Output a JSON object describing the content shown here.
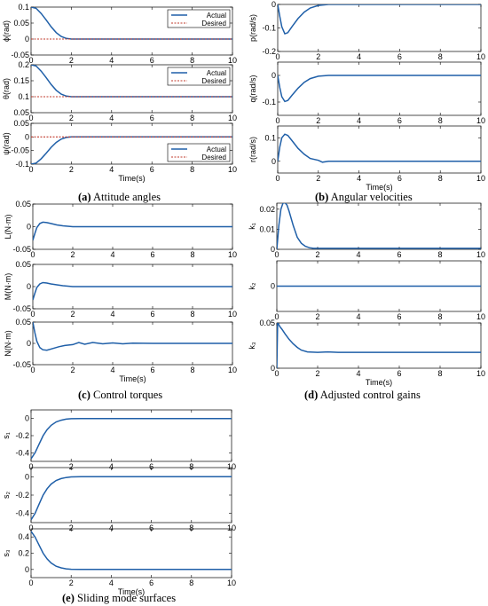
{
  "colors": {
    "actual": "#1f5fa8",
    "desired": "#c0392b",
    "axis": "#000000"
  },
  "legend": {
    "actual": "Actual",
    "desired": "Desired"
  },
  "captions": {
    "a": {
      "letter": "(a)",
      "text": " Attitude angles"
    },
    "b": {
      "letter": "(b)",
      "text": " Angular velocities"
    },
    "c": {
      "letter": "(c)",
      "text": " Control torques"
    },
    "d": {
      "letter": "(d)",
      "text": " Adjusted control gains"
    },
    "e": {
      "letter": "(e)",
      "text": " Sliding mode surfaces"
    }
  },
  "chart_data": [
    {
      "id": "a1",
      "type": "line",
      "ylabel": "ϕ(rad)",
      "xlim": [
        0,
        10
      ],
      "ylim": [
        -0.05,
        0.1
      ],
      "xticks": [
        0,
        2,
        4,
        6,
        8,
        10
      ],
      "yticks": [
        {
          "v": -0.05,
          "t": "-0.05"
        },
        {
          "v": 0,
          "t": "0"
        },
        {
          "v": 0.05,
          "t": "0.05"
        },
        {
          "v": 0.1,
          "t": "0.1"
        }
      ],
      "legend": "top-right",
      "xlabel": "",
      "showXTickLabels": true,
      "series": [
        {
          "name": "Actual",
          "kind": "actual",
          "x": [
            0,
            0.25,
            0.5,
            0.75,
            1,
            1.25,
            1.5,
            1.75,
            2,
            2.5,
            3,
            10
          ],
          "y": [
            0.1,
            0.096,
            0.08,
            0.06,
            0.038,
            0.02,
            0.008,
            0.002,
            0,
            0,
            0,
            0
          ]
        },
        {
          "name": "Desired",
          "kind": "desired",
          "x": [
            0,
            10
          ],
          "y": [
            0,
            0
          ]
        }
      ]
    },
    {
      "id": "a2",
      "type": "line",
      "ylabel": "θ(rad)",
      "xlim": [
        0,
        10
      ],
      "ylim": [
        0.05,
        0.2
      ],
      "xticks": [
        0,
        2,
        4,
        6,
        8,
        10
      ],
      "yticks": [
        {
          "v": 0.05,
          "t": "0.05"
        },
        {
          "v": 0.1,
          "t": "0.1"
        },
        {
          "v": 0.15,
          "t": "0.15"
        },
        {
          "v": 0.2,
          "t": "0.2"
        }
      ],
      "legend": "top-right",
      "xlabel": "",
      "showXTickLabels": true,
      "series": [
        {
          "name": "Actual",
          "kind": "actual",
          "x": [
            0,
            0.25,
            0.5,
            0.75,
            1,
            1.25,
            1.5,
            1.75,
            2,
            2.5,
            10
          ],
          "y": [
            0.2,
            0.196,
            0.18,
            0.16,
            0.138,
            0.12,
            0.108,
            0.102,
            0.1,
            0.1,
            0.1
          ]
        },
        {
          "name": "Desired",
          "kind": "desired",
          "x": [
            0,
            10
          ],
          "y": [
            0.1,
            0.1
          ]
        }
      ]
    },
    {
      "id": "a3",
      "type": "line",
      "ylabel": "ψ(rad)",
      "xlim": [
        0,
        10
      ],
      "ylim": [
        -0.1,
        0.05
      ],
      "xticks": [
        0,
        2,
        4,
        6,
        8,
        10
      ],
      "yticks": [
        {
          "v": -0.1,
          "t": "-0.1"
        },
        {
          "v": -0.05,
          "t": "-0.05"
        },
        {
          "v": 0,
          "t": "0"
        },
        {
          "v": 0.05,
          "t": "0.05"
        }
      ],
      "legend": "bottom-right",
      "xlabel": "Time(s)",
      "showXTickLabels": true,
      "series": [
        {
          "name": "Actual",
          "kind": "actual",
          "x": [
            0,
            0.25,
            0.5,
            0.75,
            1,
            1.25,
            1.5,
            1.75,
            2,
            2.5,
            10
          ],
          "y": [
            -0.1,
            -0.096,
            -0.08,
            -0.06,
            -0.038,
            -0.02,
            -0.008,
            -0.002,
            0,
            0,
            0
          ]
        },
        {
          "name": "Desired",
          "kind": "desired",
          "x": [
            0,
            10
          ],
          "y": [
            0,
            0
          ]
        }
      ]
    },
    {
      "id": "b1",
      "type": "line",
      "ylabel": "p(rad/s)",
      "xlim": [
        0,
        10
      ],
      "ylim": [
        -0.2,
        0
      ],
      "xticks": [
        0,
        2,
        4,
        6,
        8,
        10
      ],
      "yticks": [
        {
          "v": -0.2,
          "t": "-0.2"
        },
        {
          "v": -0.1,
          "t": "-0.1"
        },
        {
          "v": 0,
          "t": "0"
        }
      ],
      "xlabel": "",
      "showXTickLabels": true,
      "series": [
        {
          "name": "",
          "kind": "actual",
          "x": [
            0,
            0.1,
            0.2,
            0.35,
            0.5,
            0.7,
            1,
            1.3,
            1.6,
            2,
            2.5,
            3,
            10
          ],
          "y": [
            0,
            -0.05,
            -0.095,
            -0.125,
            -0.12,
            -0.095,
            -0.06,
            -0.033,
            -0.015,
            -0.004,
            0,
            0,
            0
          ]
        }
      ]
    },
    {
      "id": "b2",
      "type": "line",
      "ylabel": "q(rad/s)",
      "xlim": [
        0,
        10
      ],
      "ylim": [
        -0.15,
        0.05
      ],
      "xticks": [
        0,
        2,
        4,
        6,
        8,
        10
      ],
      "yticks": [
        {
          "v": -0.1,
          "t": "-0.1"
        },
        {
          "v": 0,
          "t": "0"
        }
      ],
      "xlabel": "",
      "showXTickLabels": true,
      "series": [
        {
          "name": "",
          "kind": "actual",
          "x": [
            0,
            0.1,
            0.2,
            0.35,
            0.5,
            0.7,
            1,
            1.3,
            1.6,
            2,
            2.5,
            3,
            10
          ],
          "y": [
            0,
            -0.045,
            -0.08,
            -0.098,
            -0.094,
            -0.075,
            -0.048,
            -0.026,
            -0.012,
            -0.003,
            0,
            0,
            0
          ]
        }
      ]
    },
    {
      "id": "b3",
      "type": "line",
      "ylabel": "r(rad/s)",
      "xlim": [
        0,
        10
      ],
      "ylim": [
        -0.05,
        0.15
      ],
      "xticks": [
        0,
        2,
        4,
        6,
        8,
        10
      ],
      "yticks": [
        {
          "v": 0,
          "t": "0"
        },
        {
          "v": 0.1,
          "t": "0.1"
        }
      ],
      "xlabel": "Time(s)",
      "showXTickLabels": true,
      "series": [
        {
          "name": "",
          "kind": "actual",
          "x": [
            0,
            0.1,
            0.2,
            0.35,
            0.5,
            0.7,
            1,
            1.3,
            1.6,
            2,
            2.2,
            2.5,
            3,
            10
          ],
          "y": [
            0,
            0.06,
            0.1,
            0.115,
            0.11,
            0.088,
            0.055,
            0.03,
            0.012,
            0.004,
            -0.004,
            0,
            0,
            0
          ]
        }
      ]
    },
    {
      "id": "c1",
      "type": "line",
      "ylabel": "L(N·m)",
      "xlim": [
        0,
        10
      ],
      "ylim": [
        -0.05,
        0.05
      ],
      "xticks": [
        0,
        2,
        4,
        6,
        8,
        10
      ],
      "yticks": [
        {
          "v": -0.05,
          "t": "-0.05"
        },
        {
          "v": 0,
          "t": "0"
        },
        {
          "v": 0.05,
          "t": "0.05"
        }
      ],
      "xlabel": "",
      "showXTickLabels": true,
      "series": [
        {
          "name": "",
          "kind": "actual",
          "x": [
            0,
            0.1,
            0.2,
            0.35,
            0.5,
            0.7,
            0.9,
            1.2,
            1.5,
            2,
            2.5,
            10
          ],
          "y": [
            -0.03,
            -0.015,
            -0.002,
            0.007,
            0.01,
            0.009,
            0.007,
            0.004,
            0.002,
            0,
            0,
            0
          ]
        }
      ]
    },
    {
      "id": "c2",
      "type": "line",
      "ylabel": "M(N·m)",
      "xlim": [
        0,
        10
      ],
      "ylim": [
        -0.05,
        0.05
      ],
      "xticks": [
        0,
        2,
        4,
        6,
        8,
        10
      ],
      "yticks": [
        {
          "v": -0.05,
          "t": "-0.05"
        },
        {
          "v": 0,
          "t": "0"
        },
        {
          "v": 0.05,
          "t": "0.05"
        }
      ],
      "xlabel": "",
      "showXTickLabels": true,
      "series": [
        {
          "name": "",
          "kind": "actual",
          "x": [
            0,
            0.1,
            0.2,
            0.35,
            0.5,
            0.7,
            0.9,
            1.2,
            1.5,
            2,
            2.5,
            10
          ],
          "y": [
            -0.03,
            -0.015,
            -0.002,
            0.006,
            0.009,
            0.008,
            0.006,
            0.004,
            0.002,
            0,
            0,
            0
          ]
        }
      ]
    },
    {
      "id": "c3",
      "type": "line",
      "ylabel": "N(N·m)",
      "xlim": [
        0,
        10
      ],
      "ylim": [
        -0.05,
        0.05
      ],
      "xticks": [
        0,
        2,
        4,
        6,
        8,
        10
      ],
      "yticks": [
        {
          "v": -0.05,
          "t": "-0.05"
        },
        {
          "v": 0,
          "t": "0"
        },
        {
          "v": 0.05,
          "t": "0.05"
        }
      ],
      "xlabel": "Time(s)",
      "showXTickLabels": true,
      "series": [
        {
          "name": "",
          "kind": "actual",
          "x": [
            0,
            0.1,
            0.2,
            0.35,
            0.5,
            0.7,
            1,
            1.3,
            1.6,
            2,
            2.3,
            2.6,
            3,
            3.5,
            4,
            4.5,
            5,
            6,
            10
          ],
          "y": [
            0.05,
            0.025,
            0.005,
            -0.01,
            -0.015,
            -0.016,
            -0.012,
            -0.008,
            -0.005,
            -0.003,
            0.002,
            -0.002,
            0.002,
            -0.001,
            0.001,
            -0.001,
            0.0005,
            0,
            0
          ]
        }
      ]
    },
    {
      "id": "d1",
      "type": "line",
      "ylabel": "k₁",
      "xlim": [
        0,
        10
      ],
      "ylim": [
        0,
        0.023
      ],
      "xticks": [
        0,
        2,
        4,
        6,
        8,
        10
      ],
      "yticks": [
        {
          "v": 0,
          "t": "0"
        },
        {
          "v": 0.01,
          "t": "0.01"
        },
        {
          "v": 0.02,
          "t": "0.02"
        }
      ],
      "xlabel": "",
      "showXTickLabels": true,
      "series": [
        {
          "name": "",
          "kind": "actual",
          "x": [
            0,
            0.1,
            0.2,
            0.3,
            0.4,
            0.5,
            0.6,
            0.8,
            1,
            1.2,
            1.4,
            1.6,
            1.8,
            2,
            2.5,
            3,
            10
          ],
          "y": [
            0,
            0.012,
            0.02,
            0.023,
            0.0232,
            0.022,
            0.019,
            0.012,
            0.006,
            0.003,
            0.0015,
            0.0008,
            0.0005,
            0.0005,
            0.0005,
            0.0005,
            0.0005
          ]
        }
      ]
    },
    {
      "id": "d2",
      "type": "line",
      "ylabel": "k₂",
      "xlim": [
        0,
        10
      ],
      "ylim": [
        -1,
        1
      ],
      "xticks": [
        0,
        2,
        4,
        6,
        8,
        10
      ],
      "yticks": [
        {
          "v": 0,
          "t": "0"
        }
      ],
      "xlabel": "",
      "showXTickLabels": true,
      "series": [
        {
          "name": "",
          "kind": "actual",
          "x": [
            0,
            10
          ],
          "y": [
            0,
            0
          ]
        }
      ]
    },
    {
      "id": "d3",
      "type": "line",
      "ylabel": "k₃",
      "xlim": [
        0,
        10
      ],
      "ylim": [
        0,
        0.05
      ],
      "xticks": [
        0,
        2,
        4,
        6,
        8,
        10
      ],
      "yticks": [
        {
          "v": 0,
          "t": "0"
        },
        {
          "v": 0.05,
          "t": "0.05"
        }
      ],
      "xlabel": "Time(s)",
      "showXTickLabels": true,
      "series": [
        {
          "name": "",
          "kind": "actual",
          "x": [
            0,
            0.04,
            0.08,
            0.15,
            0.25,
            0.4,
            0.6,
            0.8,
            1,
            1.2,
            1.5,
            2,
            2.5,
            3,
            10
          ],
          "y": [
            0,
            0.05,
            0.049,
            0.046,
            0.043,
            0.038,
            0.032,
            0.027,
            0.023,
            0.02,
            0.018,
            0.0175,
            0.018,
            0.0175,
            0.0175
          ]
        }
      ]
    },
    {
      "id": "e1",
      "type": "line",
      "ylabel": "s₁",
      "xlim": [
        0,
        10
      ],
      "ylim": [
        -0.5,
        0.1
      ],
      "xticks": [
        0,
        2,
        4,
        6,
        8,
        10
      ],
      "yticks": [
        {
          "v": -0.4,
          "t": "-0.4"
        },
        {
          "v": -0.2,
          "t": "-0.2"
        },
        {
          "v": 0,
          "t": "0"
        }
      ],
      "xlabel": "",
      "showXTickLabels": true,
      "series": [
        {
          "name": "",
          "kind": "actual",
          "x": [
            0,
            0.2,
            0.4,
            0.6,
            0.8,
            1,
            1.25,
            1.5,
            1.75,
            2,
            2.5,
            3,
            10
          ],
          "y": [
            -0.47,
            -0.4,
            -0.3,
            -0.2,
            -0.13,
            -0.08,
            -0.04,
            -0.02,
            -0.008,
            -0.002,
            0,
            0,
            0
          ]
        }
      ]
    },
    {
      "id": "e2",
      "type": "line",
      "ylabel": "s₂",
      "xlim": [
        0,
        10
      ],
      "ylim": [
        -0.5,
        0.1
      ],
      "xticks": [
        0,
        2,
        4,
        6,
        8,
        10
      ],
      "yticks": [
        {
          "v": -0.4,
          "t": "-0.4"
        },
        {
          "v": -0.2,
          "t": "-0.2"
        },
        {
          "v": 0,
          "t": "0"
        }
      ],
      "xlabel": "",
      "showXTickLabels": true,
      "series": [
        {
          "name": "",
          "kind": "actual",
          "x": [
            0,
            0.2,
            0.4,
            0.6,
            0.8,
            1,
            1.25,
            1.5,
            1.75,
            2,
            2.5,
            3,
            10
          ],
          "y": [
            -0.47,
            -0.4,
            -0.3,
            -0.2,
            -0.13,
            -0.08,
            -0.04,
            -0.02,
            -0.008,
            -0.002,
            0,
            0,
            0
          ]
        }
      ]
    },
    {
      "id": "e3",
      "type": "line",
      "ylabel": "s₃",
      "xlim": [
        0,
        10
      ],
      "ylim": [
        -0.1,
        0.5
      ],
      "xticks": [
        0,
        2,
        4,
        6,
        8,
        10
      ],
      "yticks": [
        {
          "v": 0,
          "t": "0"
        },
        {
          "v": 0.2,
          "t": "0.2"
        },
        {
          "v": 0.4,
          "t": "0.4"
        }
      ],
      "xlabel": "Time(s)",
      "showXTickLabels": true,
      "series": [
        {
          "name": "",
          "kind": "actual",
          "x": [
            0,
            0.2,
            0.4,
            0.6,
            0.8,
            1,
            1.25,
            1.5,
            1.75,
            2,
            2.5,
            3,
            10
          ],
          "y": [
            0.47,
            0.4,
            0.3,
            0.2,
            0.13,
            0.08,
            0.04,
            0.02,
            0.008,
            0.002,
            0,
            0,
            0
          ]
        }
      ]
    }
  ]
}
